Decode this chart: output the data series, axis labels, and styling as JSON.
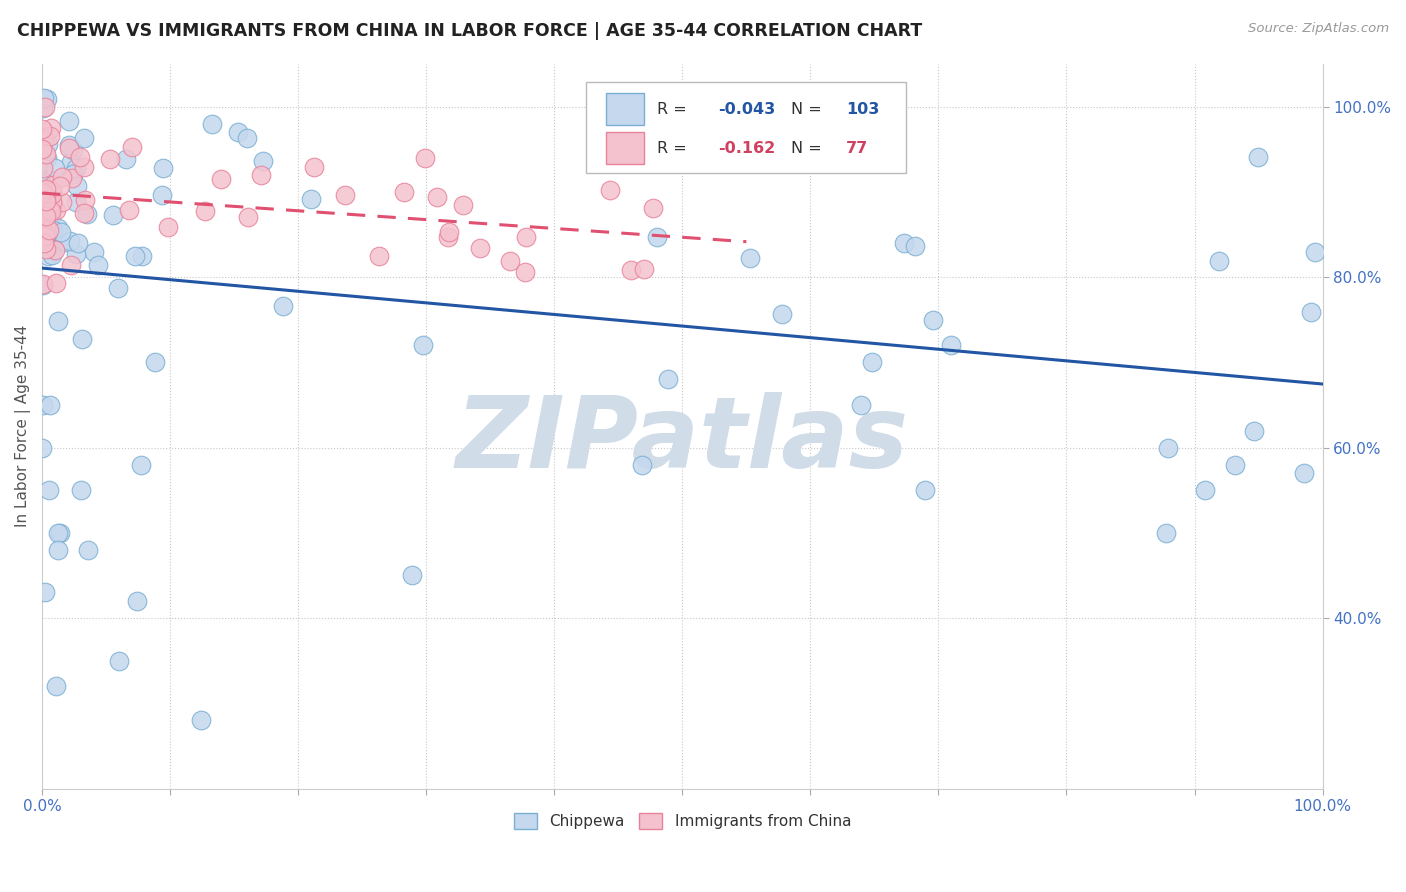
{
  "title": "CHIPPEWA VS IMMIGRANTS FROM CHINA IN LABOR FORCE | AGE 35-44 CORRELATION CHART",
  "source": "Source: ZipAtlas.com",
  "ylabel": "In Labor Force | Age 35-44",
  "xlim": [
    0.0,
    1.0
  ],
  "ylim": [
    0.2,
    1.05
  ],
  "x_ticks": [
    0.0,
    0.1,
    0.2,
    0.3,
    0.4,
    0.5,
    0.6,
    0.7,
    0.8,
    0.9,
    1.0
  ],
  "y_ticks": [
    0.4,
    0.6,
    0.8,
    1.0
  ],
  "y_tick_labels": [
    "40.0%",
    "60.0%",
    "80.0%",
    "100.0%"
  ],
  "blue_R": "-0.043",
  "blue_N": "103",
  "pink_R": "-0.162",
  "pink_N": "77",
  "blue_fill": "#c5d8ee",
  "blue_edge": "#7aafd4",
  "pink_fill": "#f4c2ce",
  "pink_edge": "#e8829a",
  "blue_line_color": "#2255a4",
  "pink_line_color": "#e05070",
  "watermark_color": "#d0dce8",
  "background_color": "#ffffff",
  "grid_color": "#c8c8c8",
  "legend_blue_R_color": "#2255a4",
  "legend_pink_R_color": "#d04060",
  "legend_N_color": "#2255a4",
  "legend_pink_N_color": "#d04060"
}
